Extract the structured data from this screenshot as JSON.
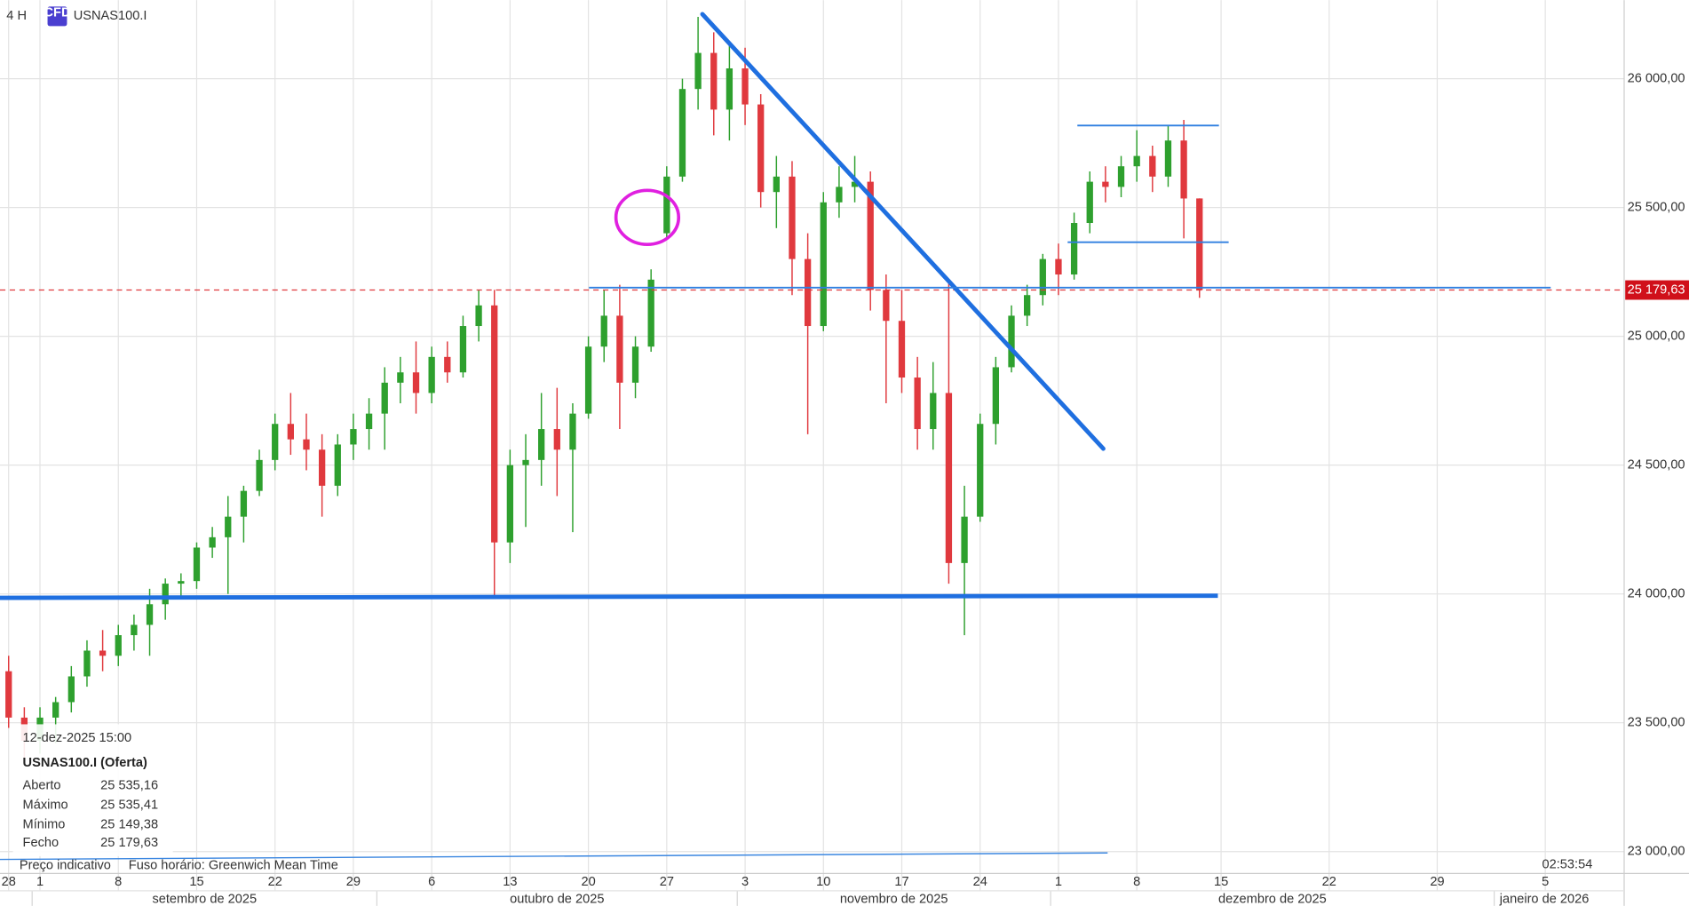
{
  "header": {
    "timeframe": "4 H",
    "icon": "CFD",
    "symbol": "USNAS100.I"
  },
  "chart_data": {
    "type": "candlestick",
    "x": [
      "2025-08-28",
      "2025-08-29",
      "2025-09-01",
      "2025-09-02",
      "2025-09-03",
      "2025-09-04",
      "2025-09-05",
      "2025-09-08",
      "2025-09-09",
      "2025-09-10",
      "2025-09-11",
      "2025-09-12",
      "2025-09-15",
      "2025-09-16",
      "2025-09-17",
      "2025-09-18",
      "2025-09-19",
      "2025-09-22",
      "2025-09-23",
      "2025-09-24",
      "2025-09-25",
      "2025-09-26",
      "2025-09-29",
      "2025-09-30",
      "2025-10-01",
      "2025-10-02",
      "2025-10-03",
      "2025-10-06",
      "2025-10-07",
      "2025-10-08",
      "2025-10-09",
      "2025-10-10",
      "2025-10-13",
      "2025-10-14",
      "2025-10-15",
      "2025-10-16",
      "2025-10-17",
      "2025-10-20",
      "2025-10-21",
      "2025-10-22",
      "2025-10-23",
      "2025-10-24",
      "2025-10-27",
      "2025-10-28",
      "2025-10-29",
      "2025-10-30",
      "2025-10-31",
      "2025-11-03",
      "2025-11-04",
      "2025-11-05",
      "2025-11-06",
      "2025-11-07",
      "2025-11-10",
      "2025-11-11",
      "2025-11-12",
      "2025-11-13",
      "2025-11-14",
      "2025-11-17",
      "2025-11-18",
      "2025-11-19",
      "2025-11-20",
      "2025-11-21",
      "2025-11-24",
      "2025-11-25",
      "2025-11-26",
      "2025-11-27",
      "2025-11-28",
      "2025-12-01",
      "2025-12-02",
      "2025-12-03",
      "2025-12-04",
      "2025-12-05",
      "2025-12-08",
      "2025-12-09",
      "2025-12-10",
      "2025-12-11",
      "2025-12-12"
    ],
    "open": [
      23700,
      23520,
      23430,
      23520,
      23580,
      23680,
      23780,
      23760,
      23840,
      23880,
      23960,
      24040,
      24050,
      24180,
      24220,
      24300,
      24400,
      24520,
      24660,
      24600,
      24560,
      24420,
      24580,
      24640,
      24700,
      24820,
      24860,
      24780,
      24920,
      24860,
      25040,
      25120,
      24200,
      24500,
      24520,
      24640,
      24560,
      24700,
      24960,
      25080,
      24820,
      24960,
      25400,
      25620,
      25960,
      26100,
      25880,
      26040,
      25900,
      25560,
      25620,
      25300,
      25040,
      25520,
      25580,
      25600,
      25180,
      25060,
      24840,
      24640,
      24780,
      24120,
      24300,
      24660,
      24880,
      25080,
      25160,
      25300,
      25240,
      25440,
      25600,
      25580,
      25660,
      25700,
      25620,
      25760,
      25535.16
    ],
    "high": [
      23760,
      23560,
      23560,
      23600,
      23720,
      23820,
      23860,
      23880,
      23920,
      24020,
      24060,
      24080,
      24200,
      24260,
      24380,
      24420,
      24560,
      24700,
      24780,
      24700,
      24620,
      24620,
      24700,
      24760,
      24880,
      24920,
      24980,
      24960,
      24980,
      25080,
      25180,
      25180,
      24560,
      24620,
      24780,
      24800,
      24740,
      25000,
      25180,
      25200,
      25000,
      25260,
      25660,
      26000,
      26240,
      26180,
      26140,
      26120,
      25940,
      25700,
      25680,
      25400,
      25560,
      25660,
      25700,
      25640,
      25240,
      25180,
      24920,
      24900,
      25210,
      24420,
      24700,
      24920,
      25120,
      25200,
      25320,
      25360,
      25480,
      25640,
      25660,
      25700,
      25800,
      25740,
      25820,
      25840,
      25535.41
    ],
    "low": [
      23480,
      23360,
      23380,
      23420,
      23540,
      23640,
      23700,
      23720,
      23780,
      23760,
      23900,
      23980,
      24020,
      24140,
      24000,
      24200,
      24380,
      24480,
      24540,
      24480,
      24300,
      24380,
      24520,
      24560,
      24560,
      24740,
      24700,
      24740,
      24820,
      24840,
      24980,
      23980,
      24120,
      24260,
      24420,
      24380,
      24240,
      24680,
      24900,
      24640,
      24760,
      24940,
      25380,
      25600,
      25880,
      25780,
      25760,
      25820,
      25500,
      25420,
      25160,
      24620,
      25020,
      25460,
      25520,
      25100,
      24740,
      24780,
      24560,
      24560,
      24040,
      23840,
      24280,
      24580,
      24860,
      25040,
      25120,
      25160,
      25220,
      25400,
      25520,
      25540,
      25600,
      25560,
      25580,
      25380,
      25149.38
    ],
    "close": [
      23520,
      23430,
      23520,
      23580,
      23680,
      23780,
      23760,
      23840,
      23880,
      23960,
      24040,
      24050,
      24180,
      24220,
      24300,
      24400,
      24520,
      24660,
      24600,
      24560,
      24420,
      24580,
      24640,
      24700,
      24820,
      24860,
      24780,
      24920,
      24860,
      25040,
      25120,
      24200,
      24500,
      24520,
      24640,
      24560,
      24700,
      24960,
      25080,
      24820,
      24960,
      25220,
      25620,
      25960,
      26100,
      25880,
      26040,
      25900,
      25560,
      25620,
      25300,
      25040,
      25520,
      25580,
      25600,
      25180,
      25060,
      24840,
      24640,
      24780,
      24120,
      24300,
      24660,
      24880,
      25080,
      25160,
      25300,
      25240,
      25440,
      25600,
      25580,
      25660,
      25700,
      25620,
      25760,
      25535,
      25179.63
    ],
    "up_color": "#2ea02e",
    "down_color": "#e0393e",
    "ylim": [
      22915,
      26305
    ],
    "yticks": [
      {
        "value": 23000,
        "label": "23 000,00"
      },
      {
        "value": 23500,
        "label": "23 500,00"
      },
      {
        "value": 24000,
        "label": "24 000,00"
      },
      {
        "value": 24500,
        "label": "24 500,00"
      },
      {
        "value": 25000,
        "label": "25 000,00"
      },
      {
        "value": 25500,
        "label": "25 500,00"
      },
      {
        "value": 26000,
        "label": "26 000,00"
      }
    ],
    "xticks": [
      {
        "value": "2025-08-28",
        "label": "28"
      },
      {
        "value": "2025-09-01",
        "label": "1"
      },
      {
        "value": "2025-09-08",
        "label": "8"
      },
      {
        "value": "2025-09-15",
        "label": "15"
      },
      {
        "value": "2025-09-22",
        "label": "22"
      },
      {
        "value": "2025-09-29",
        "label": "29"
      },
      {
        "value": "2025-10-06",
        "label": "6"
      },
      {
        "value": "2025-10-13",
        "label": "13"
      },
      {
        "value": "2025-10-20",
        "label": "20"
      },
      {
        "value": "2025-10-27",
        "label": "27"
      },
      {
        "value": "2025-11-03",
        "label": "3"
      },
      {
        "value": "2025-11-10",
        "label": "10"
      },
      {
        "value": "2025-11-17",
        "label": "17"
      },
      {
        "value": "2025-11-24",
        "label": "24"
      },
      {
        "value": "2025-12-01",
        "label": "1"
      },
      {
        "value": "2025-12-08",
        "label": "8"
      },
      {
        "value": "2025-12-15",
        "label": "15"
      },
      {
        "value": "2025-12-22",
        "label": "22"
      },
      {
        "value": "2025-12-29",
        "label": "29"
      },
      {
        "value": "2026-01-05",
        "label": "5"
      }
    ],
    "months": [
      {
        "value": "2025-09-01",
        "label": "setembro de 2025"
      },
      {
        "value": "2025-10-01",
        "label": "outubro de 2025"
      },
      {
        "value": "2025-11-03",
        "label": "novembro de 2025"
      },
      {
        "value": "2025-12-01",
        "label": "dezembro de 2025"
      },
      {
        "value": "2026-01-01",
        "label": "janeiro de 2026"
      }
    ],
    "last_price": {
      "value": 25179.63,
      "label": "25 179,63"
    },
    "grid": true
  },
  "info_box": {
    "datetime": "12-dez-2025 15:00",
    "title": "USNAS100.I (Oferta)",
    "rows": [
      [
        "Aberto",
        "25 535,16"
      ],
      [
        "Máximo",
        "25 535,41"
      ],
      [
        "Mínimo",
        "25 149,38"
      ],
      [
        "Fecho",
        "25 179,63"
      ]
    ]
  },
  "footer": {
    "note": "Preço indicativo",
    "timezone": "Fuso horário: Greenwich Mean Time",
    "clock": "02:53:54"
  }
}
